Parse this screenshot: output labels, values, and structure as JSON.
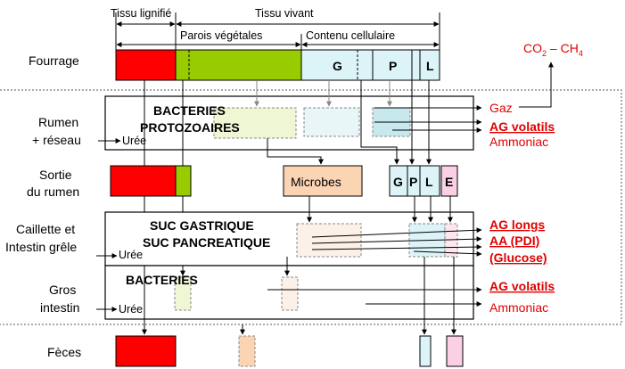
{
  "header": {
    "tissu_lignifie": "Tissu lignifié",
    "tissu_vivant": "Tissu vivant",
    "parois_vegetales": "Parois végétales",
    "contenu_cellulaire": "Contenu cellulaire"
  },
  "rows": {
    "fourrage": "Fourrage",
    "rumen_line1": "Rumen",
    "rumen_line2": "+ réseau",
    "sortie_line1": "Sortie",
    "sortie_line2": "du rumen",
    "caillette_line1": "Caillette et",
    "caillette_line2": "Intestin grêle",
    "gros_line1": "Gros",
    "gros_line2": "intestin",
    "feces": "Fèces"
  },
  "fourrage_cells": {
    "g": "G",
    "p": "P",
    "l": "L"
  },
  "gas": {
    "co2": "CO",
    "co2_sub": "2",
    "dash": " – CH",
    "ch4_sub": "4"
  },
  "rumen": {
    "bacteries": "BACTERIES",
    "protozoaires": "PROTOZOAIRES",
    "uree": "Urée",
    "out_gaz": "Gaz",
    "out_ag_volatils": "AG  volatils",
    "out_ammoniac": "Ammoniac"
  },
  "sortie": {
    "microbes": "Microbes",
    "g": "G",
    "p": "P",
    "l": "L",
    "e": "E"
  },
  "caillette": {
    "suc_gastrique": "SUC GASTRIQUE",
    "suc_pancreatique": "SUC PANCREATIQUE",
    "uree": "Urée",
    "out_ag_longs": "AG longs",
    "out_aa_pdi": "AA (PDI)",
    "out_glucose": "(Glucose)"
  },
  "gros": {
    "bacteries": "BACTERIES",
    "uree": "Urée",
    "out_ag_volatils": "AG  volatils",
    "out_ammoniac": "Ammoniac"
  },
  "colors": {
    "red": "#ff0000",
    "green": "#99cc00",
    "light_cyan": "#dcf4f8",
    "pink": "#fbd0e4",
    "peach": "#fbd4b4",
    "label_red": "#e00000"
  }
}
